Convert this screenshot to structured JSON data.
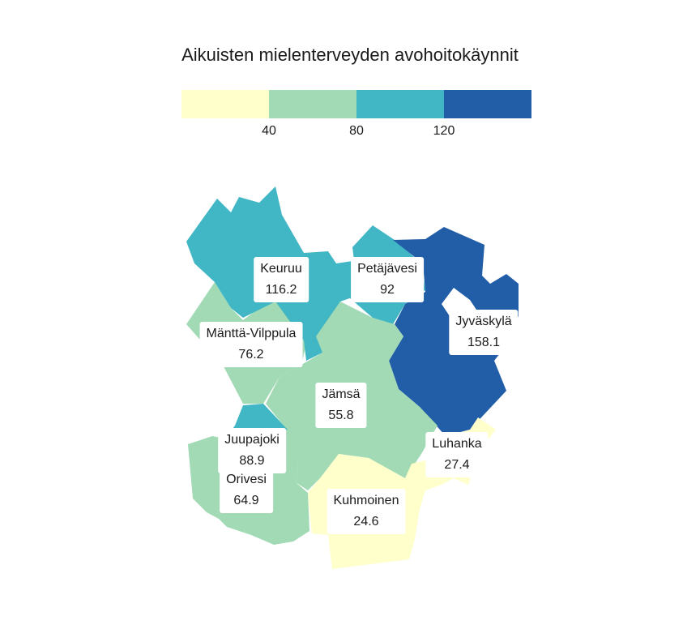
{
  "title": "Aikuisten mielenterveyden avohoitokäynnit",
  "legend": {
    "colors": [
      "#ffffcc",
      "#a1dab4",
      "#41b6c4",
      "#225ea8"
    ],
    "ticks": [
      "40",
      "80",
      "120"
    ],
    "thresholds": [
      40,
      80,
      120
    ]
  },
  "regions": [
    {
      "name": "Keuruu",
      "value": "116.2",
      "color": "#41b6c4"
    },
    {
      "name": "Petäjävesi",
      "value": "92",
      "color": "#41b6c4"
    },
    {
      "name": "Jyväskylä",
      "value": "158.1",
      "color": "#225ea8"
    },
    {
      "name": "Mänttä-Vilppula",
      "value": "76.2",
      "color": "#a1dab4"
    },
    {
      "name": "Jämsä",
      "value": "55.8",
      "color": "#a1dab4"
    },
    {
      "name": "Juupajoki",
      "value": "88.9",
      "color": "#41b6c4"
    },
    {
      "name": "Orivesi",
      "value": "64.9",
      "color": "#a1dab4"
    },
    {
      "name": "Luhanka",
      "value": "27.4",
      "color": "#ffffcc"
    },
    {
      "name": "Kuhmoinen",
      "value": "24.6",
      "color": "#ffffcc"
    }
  ]
}
